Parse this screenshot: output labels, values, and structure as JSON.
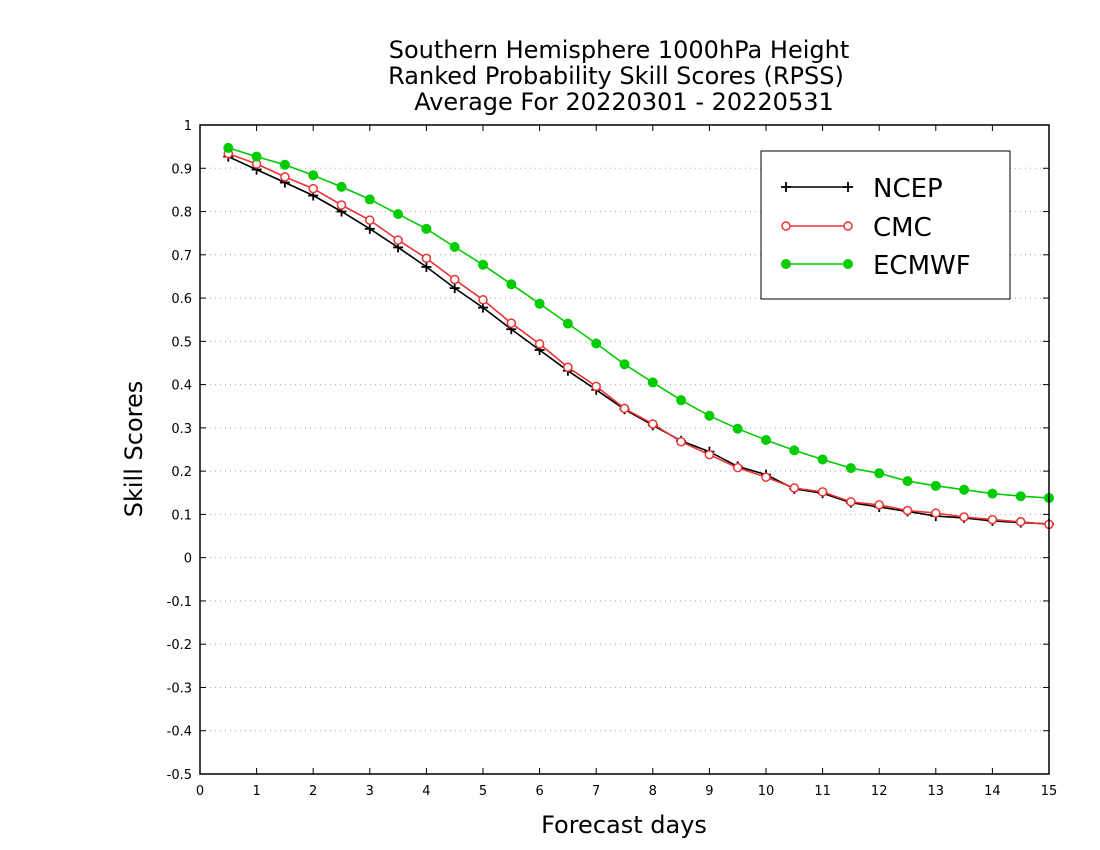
{
  "chart_data": {
    "type": "line",
    "title_lines": [
      "Southern Hemisphere 1000hPa Height",
      "Ranked Probability Skill Scores (RPSS)",
      "Average For 20220301 - 20220531"
    ],
    "xlabel": "Forecast days",
    "ylabel": "Skill Scores",
    "xlim": [
      0,
      15
    ],
    "ylim": [
      -0.5,
      1
    ],
    "x_ticks": [
      "0",
      "1",
      "2",
      "3",
      "4",
      "5",
      "6",
      "7",
      "8",
      "9",
      "10",
      "11",
      "12",
      "13",
      "14",
      "15"
    ],
    "y_ticks": [
      "-0.5",
      "-0.4",
      "-0.3",
      "-0.2",
      "-0.1",
      "0",
      "0.1",
      "0.2",
      "0.3",
      "0.4",
      "0.5",
      "0.6",
      "0.7",
      "0.8",
      "0.9",
      "1"
    ],
    "grid": "horizontal dotted",
    "legend_position": "top-right",
    "x": [
      0.5,
      1,
      1.5,
      2,
      2.5,
      3,
      3.5,
      4,
      4.5,
      5,
      5.5,
      6,
      6.5,
      7,
      7.5,
      8,
      8.5,
      9,
      9.5,
      10,
      10.5,
      11,
      11.5,
      12,
      12.5,
      13,
      13.5,
      14,
      14.5,
      15
    ],
    "series": [
      {
        "name": "NCEP",
        "color": "#000000",
        "marker": "plus",
        "values": [
          0.927,
          0.897,
          0.867,
          0.837,
          0.8,
          0.76,
          0.717,
          0.672,
          0.623,
          0.578,
          0.528,
          0.48,
          0.432,
          0.388,
          0.343,
          0.306,
          0.27,
          0.245,
          0.211,
          0.192,
          0.159,
          0.149,
          0.127,
          0.117,
          0.107,
          0.096,
          0.092,
          0.085,
          0.081,
          0.078
        ]
      },
      {
        "name": "CMC",
        "color": "#ee3333",
        "marker": "open-circle",
        "values": [
          0.934,
          0.91,
          0.88,
          0.853,
          0.815,
          0.78,
          0.734,
          0.692,
          0.643,
          0.596,
          0.542,
          0.494,
          0.44,
          0.396,
          0.345,
          0.309,
          0.268,
          0.238,
          0.208,
          0.186,
          0.161,
          0.152,
          0.129,
          0.122,
          0.109,
          0.103,
          0.094,
          0.088,
          0.083,
          0.077
        ]
      },
      {
        "name": "ECMWF",
        "color": "#00cc00",
        "marker": "filled-circle",
        "values": [
          0.947,
          0.927,
          0.908,
          0.884,
          0.857,
          0.828,
          0.794,
          0.76,
          0.718,
          0.677,
          0.632,
          0.587,
          0.541,
          0.495,
          0.447,
          0.405,
          0.364,
          0.328,
          0.298,
          0.272,
          0.248,
          0.227,
          0.207,
          0.195,
          0.177,
          0.166,
          0.157,
          0.148,
          0.142,
          0.138
        ]
      }
    ]
  }
}
